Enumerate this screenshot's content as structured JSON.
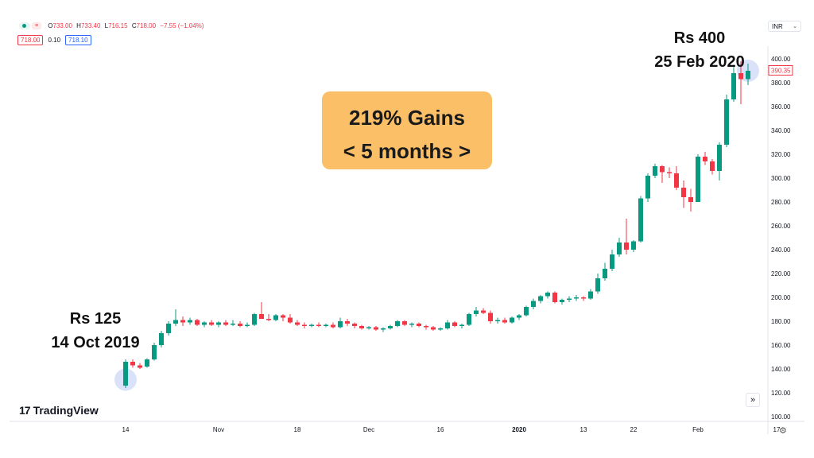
{
  "symbol_bar": {
    "open_label": "O",
    "open": "733.00",
    "high_label": "H",
    "high": "733.40",
    "low_label": "L",
    "low": "716.15",
    "close_label": "C",
    "close": "718.00",
    "change": "−7.55 (−1.04%)",
    "sell_price": "718.00",
    "spread": "0.10",
    "buy_price": "718.10"
  },
  "currency_select": {
    "value": "INR"
  },
  "callout": {
    "line1": "219% Gains",
    "line2": "< 5 months >"
  },
  "annotation_start": {
    "price": "Rs 125",
    "date": "14 Oct 2019"
  },
  "annotation_end": {
    "price": "Rs 400",
    "date": "25 Feb 2020"
  },
  "branding": {
    "logo_mark": "17",
    "logo_text": "TradingView"
  },
  "controls": {
    "scroll_to_latest": "»",
    "settings": "⚙"
  },
  "colors": {
    "up": "#089981",
    "down": "#f23645",
    "highlight": "#c9d6f5",
    "callout_bg": "#fbbf67"
  },
  "chart_data": {
    "type": "candlestick",
    "price_axis": {
      "ylim": [
        96,
        408
      ],
      "ticks": [
        100,
        120,
        140,
        160,
        180,
        200,
        220,
        240,
        260,
        280,
        300,
        320,
        340,
        360,
        380,
        400
      ],
      "tick_labels": [
        "100.00",
        "120.00",
        "140.00",
        "160.00",
        "180.00",
        "200.00",
        "220.00",
        "240.00",
        "260.00",
        "280.00",
        "300.00",
        "320.00",
        "340.00",
        "360.00",
        "380.00",
        "400.00"
      ],
      "last_price_label": "390.35"
    },
    "time_axis": {
      "labels": [
        {
          "label": "14",
          "index": 0
        },
        {
          "label": "Nov",
          "index": 13
        },
        {
          "label": "18",
          "index": 24
        },
        {
          "label": "Dec",
          "index": 34
        },
        {
          "label": "16",
          "index": 44
        },
        {
          "label": "2020",
          "index": 55,
          "bold": true
        },
        {
          "label": "13",
          "index": 64
        },
        {
          "label": "22",
          "index": 71
        },
        {
          "label": "Feb",
          "index": 80
        },
        {
          "label": "17",
          "index": 91
        }
      ]
    },
    "candles": [
      [
        126,
        148,
        124,
        146
      ],
      [
        146,
        148,
        141,
        143
      ],
      [
        143,
        145,
        140,
        141
      ],
      [
        142,
        149,
        141,
        148
      ],
      [
        148,
        162,
        147,
        160
      ],
      [
        160,
        172,
        158,
        170
      ],
      [
        170,
        180,
        168,
        178
      ],
      [
        178,
        190,
        176,
        181
      ],
      [
        181,
        184,
        176,
        179
      ],
      [
        179,
        183,
        177,
        181
      ],
      [
        181,
        182,
        176,
        177
      ],
      [
        177,
        180,
        175,
        179
      ],
      [
        179,
        181,
        176,
        177
      ],
      [
        177,
        180,
        175,
        179
      ],
      [
        179,
        181,
        176,
        177
      ],
      [
        177,
        181,
        176,
        178
      ],
      [
        178,
        180,
        175,
        176
      ],
      [
        176,
        179,
        175,
        177
      ],
      [
        177,
        187,
        176,
        186
      ],
      [
        186,
        196,
        182,
        182
      ],
      [
        182,
        186,
        180,
        181
      ],
      [
        181,
        186,
        180,
        185
      ],
      [
        185,
        186,
        180,
        183
      ],
      [
        183,
        186,
        178,
        179
      ],
      [
        179,
        181,
        176,
        177
      ],
      [
        177,
        179,
        174,
        176
      ],
      [
        176,
        178,
        175,
        177
      ],
      [
        177,
        179,
        175,
        176
      ],
      [
        176,
        178,
        175,
        177
      ],
      [
        177,
        179,
        174,
        175
      ],
      [
        175,
        183,
        174,
        180
      ],
      [
        180,
        182,
        176,
        178
      ],
      [
        178,
        179,
        174,
        176
      ],
      [
        176,
        177,
        173,
        174
      ],
      [
        174,
        176,
        173,
        175
      ],
      [
        175,
        176,
        172,
        173
      ],
      [
        173,
        175,
        171,
        174
      ],
      [
        174,
        177,
        173,
        176
      ],
      [
        176,
        181,
        175,
        180
      ],
      [
        180,
        181,
        176,
        177
      ],
      [
        177,
        179,
        175,
        178
      ],
      [
        178,
        179,
        175,
        176
      ],
      [
        176,
        177,
        173,
        175
      ],
      [
        175,
        176,
        172,
        173
      ],
      [
        173,
        175,
        172,
        174
      ],
      [
        174,
        181,
        173,
        179
      ],
      [
        179,
        180,
        175,
        176
      ],
      [
        176,
        178,
        174,
        177
      ],
      [
        177,
        187,
        176,
        186
      ],
      [
        186,
        192,
        184,
        189
      ],
      [
        189,
        191,
        186,
        187
      ],
      [
        187,
        189,
        178,
        180
      ],
      [
        180,
        183,
        178,
        181
      ],
      [
        181,
        183,
        178,
        179
      ],
      [
        179,
        184,
        178,
        183
      ],
      [
        183,
        186,
        181,
        185
      ],
      [
        185,
        193,
        184,
        192
      ],
      [
        192,
        199,
        190,
        197
      ],
      [
        197,
        202,
        195,
        201
      ],
      [
        201,
        205,
        199,
        204
      ],
      [
        204,
        205,
        195,
        196
      ],
      [
        196,
        199,
        194,
        198
      ],
      [
        198,
        201,
        196,
        199
      ],
      [
        199,
        202,
        197,
        200
      ],
      [
        200,
        201,
        197,
        199
      ],
      [
        199,
        207,
        198,
        205
      ],
      [
        205,
        220,
        203,
        216
      ],
      [
        216,
        229,
        214,
        224
      ],
      [
        224,
        240,
        222,
        236
      ],
      [
        236,
        250,
        234,
        246
      ],
      [
        246,
        266,
        236,
        240
      ],
      [
        240,
        248,
        238,
        247
      ],
      [
        247,
        285,
        246,
        283
      ],
      [
        283,
        304,
        280,
        302
      ],
      [
        302,
        312,
        300,
        310
      ],
      [
        310,
        311,
        296,
        305
      ],
      [
        305,
        309,
        300,
        304
      ],
      [
        304,
        310,
        290,
        292
      ],
      [
        292,
        298,
        275,
        284
      ],
      [
        284,
        291,
        272,
        280
      ],
      [
        280,
        320,
        280,
        318
      ],
      [
        318,
        322,
        311,
        314
      ],
      [
        314,
        316,
        303,
        306
      ],
      [
        306,
        330,
        298,
        328
      ],
      [
        328,
        370,
        326,
        366
      ],
      [
        366,
        395,
        364,
        388
      ],
      [
        388,
        398,
        362,
        383
      ],
      [
        383,
        396,
        378,
        390
      ]
    ],
    "highlights": [
      {
        "label": "start",
        "index": 0,
        "price": 131
      },
      {
        "label": "end",
        "index": 87,
        "price": 390
      }
    ]
  }
}
